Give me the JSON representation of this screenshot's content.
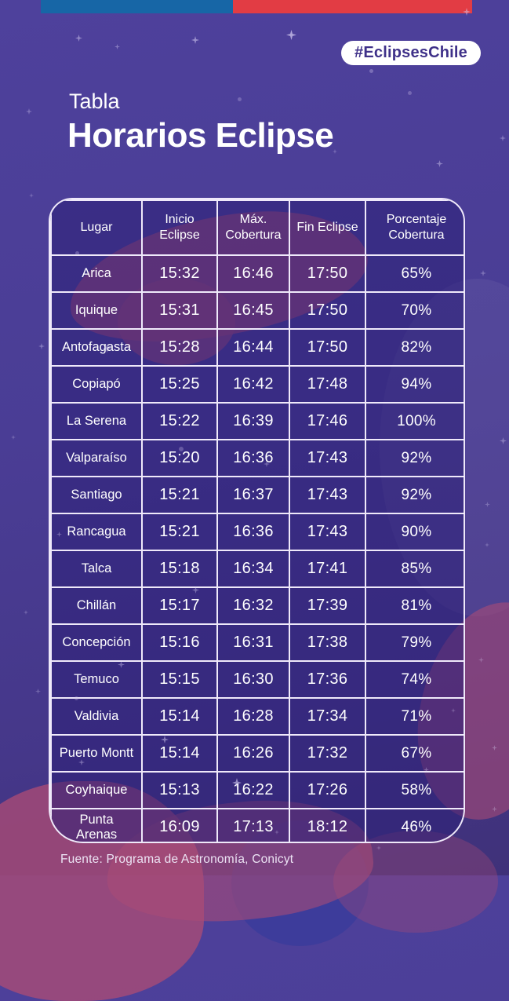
{
  "colors": {
    "bg": "#4a3d95",
    "bar-blue": "#1766a6",
    "bar-red": "#e23c44",
    "badge-text": "#3f3189",
    "blob-rose": "#a94b76",
    "table-border": "#efe9fa"
  },
  "badge": {
    "label": "#EclipsesChile"
  },
  "title": {
    "kicker": "Tabla",
    "heading": "Horarios Eclipse"
  },
  "chart_data": {
    "type": "table",
    "title": "Horarios Eclipse",
    "columns": [
      "Lugar",
      "Inicio Eclipse",
      "Máx. Cobertura",
      "Fin Eclipse",
      "Porcentaje Cobertura"
    ],
    "rows": [
      [
        "Arica",
        "15:32",
        "16:46",
        "17:50",
        "65%"
      ],
      [
        "Iquique",
        "15:31",
        "16:45",
        "17:50",
        "70%"
      ],
      [
        "Antofagasta",
        "15:28",
        "16:44",
        "17:50",
        "82%"
      ],
      [
        "Copiapó",
        "15:25",
        "16:42",
        "17:48",
        "94%"
      ],
      [
        "La Serena",
        "15:22",
        "16:39",
        "17:46",
        "100%"
      ],
      [
        "Valparaíso",
        "15:20",
        "16:36",
        "17:43",
        "92%"
      ],
      [
        "Santiago",
        "15:21",
        "16:37",
        "17:43",
        "92%"
      ],
      [
        "Rancagua",
        "15:21",
        "16:36",
        "17:43",
        "90%"
      ],
      [
        "Talca",
        "15:18",
        "16:34",
        "17:41",
        "85%"
      ],
      [
        "Chillán",
        "15:17",
        "16:32",
        "17:39",
        "81%"
      ],
      [
        "Concepción",
        "15:16",
        "16:31",
        "17:38",
        "79%"
      ],
      [
        "Temuco",
        "15:15",
        "16:30",
        "17:36",
        "74%"
      ],
      [
        "Valdivia",
        "15:14",
        "16:28",
        "17:34",
        "71%"
      ],
      [
        "Puerto Montt",
        "15:14",
        "16:26",
        "17:32",
        "67%"
      ],
      [
        "Coyhaique",
        "15:13",
        "16:22",
        "17:26",
        "58%"
      ],
      [
        "Punta\nArenas",
        "16:09",
        "17:13",
        "18:12",
        "46%"
      ]
    ]
  },
  "footer": {
    "source": "Fuente: Programa de Astronomía, Conicyt"
  }
}
